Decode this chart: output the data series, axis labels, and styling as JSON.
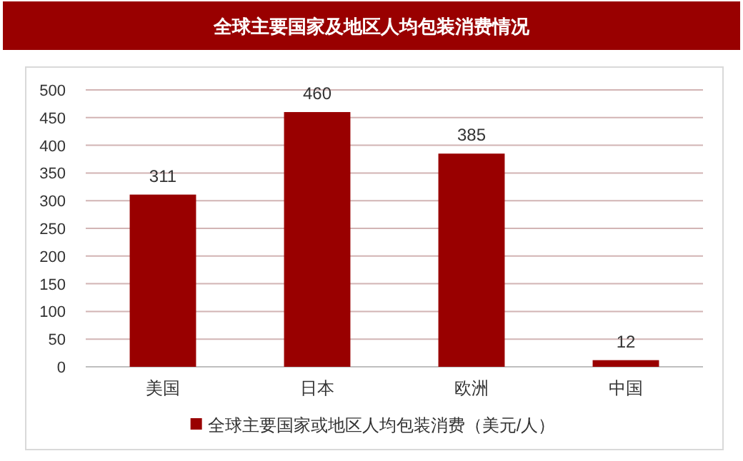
{
  "chart_data": {
    "type": "bar",
    "title": "全球主要国家及地区人均包装消费情况",
    "categories": [
      "美国",
      "日本",
      "欧洲",
      "中国"
    ],
    "series": [
      {
        "name": "全球主要国家或地区人均包装消费（美元/人）",
        "color": "#990000",
        "values": [
          311,
          460,
          385,
          12
        ]
      }
    ],
    "ylim": [
      0,
      500
    ],
    "yticks": [
      0,
      50,
      100,
      150,
      200,
      250,
      300,
      350,
      400,
      450,
      500
    ],
    "grid": "y",
    "legend": "bottom",
    "data_labels": true
  }
}
